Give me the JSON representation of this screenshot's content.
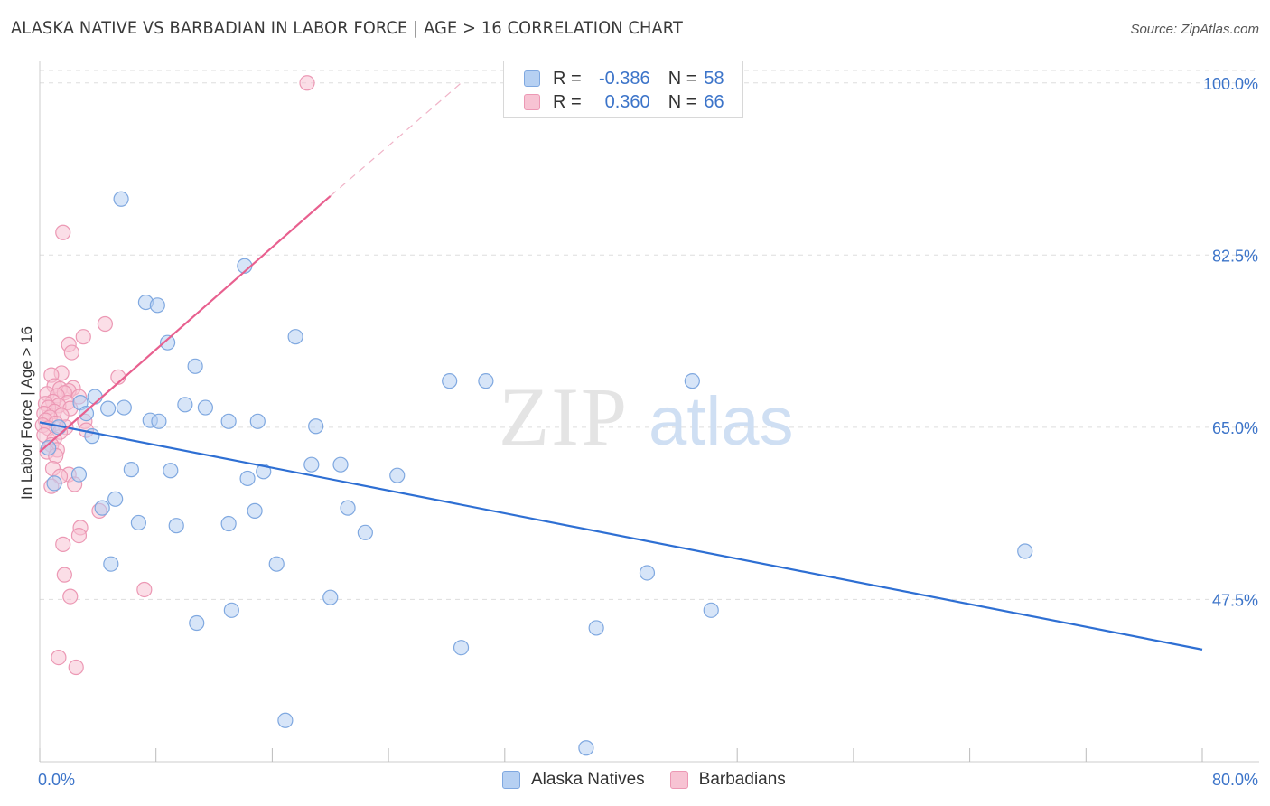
{
  "title": "ALASKA NATIVE VS BARBADIAN IN LABOR FORCE | AGE > 16 CORRELATION CHART",
  "source": "Source: ZipAtlas.com",
  "watermark": {
    "zip": "ZIP",
    "atlas": "atlas"
  },
  "legend": {
    "r_label": "R =",
    "n_label": "N =",
    "series": [
      {
        "name": "Alaska Natives",
        "r": "-0.386",
        "n": "58"
      },
      {
        "name": "Barbadians",
        "r": "0.360",
        "n": "66"
      }
    ]
  },
  "colors": {
    "blue_fill": "#b6d0f2",
    "blue_stroke": "#7fa8e0",
    "blue_line": "#2e6fd3",
    "pink_fill": "#f7c3d3",
    "pink_stroke": "#ec98b4",
    "pink_line": "#e8608f",
    "axis_label": "#3c74c9",
    "grid": "#dddddd"
  },
  "chart_data": {
    "type": "scatter",
    "title": "ALASKA NATIVE VS BARBADIAN IN LABOR FORCE | AGE > 16 CORRELATION CHART",
    "xlabel": "",
    "ylabel": "In Labor Force | Age > 16",
    "xlim": [
      0,
      80
    ],
    "ylim": [
      31,
      102
    ],
    "x_tick_labels": [
      "0.0%",
      "80.0%"
    ],
    "y_ticks": [
      47.5,
      65.0,
      82.5,
      100.0
    ],
    "y_tick_labels": [
      "47.5%",
      "65.0%",
      "82.5%",
      "100.0%"
    ],
    "grid": true,
    "series": [
      {
        "name": "Alaska Natives",
        "color": "#b6d0f2",
        "trend": {
          "x0": 0.0,
          "y0": 65.5,
          "x1": 80.0,
          "y1": 42.4
        },
        "points": [
          [
            5.6,
            88.2
          ],
          [
            14.1,
            81.4
          ],
          [
            7.3,
            77.7
          ],
          [
            8.1,
            77.4
          ],
          [
            17.6,
            74.2
          ],
          [
            8.8,
            73.6
          ],
          [
            10.7,
            71.2
          ],
          [
            44.9,
            69.7
          ],
          [
            30.7,
            69.7
          ],
          [
            28.2,
            69.7
          ],
          [
            3.8,
            68.1
          ],
          [
            2.8,
            67.5
          ],
          [
            10.0,
            67.3
          ],
          [
            11.4,
            67.0
          ],
          [
            5.8,
            67.0
          ],
          [
            4.7,
            66.9
          ],
          [
            3.2,
            66.4
          ],
          [
            7.6,
            65.7
          ],
          [
            8.2,
            65.6
          ],
          [
            13.0,
            65.6
          ],
          [
            15.0,
            65.6
          ],
          [
            19.0,
            65.1
          ],
          [
            1.3,
            65.0
          ],
          [
            3.6,
            64.1
          ],
          [
            0.6,
            62.9
          ],
          [
            18.7,
            61.2
          ],
          [
            20.7,
            61.2
          ],
          [
            6.3,
            60.7
          ],
          [
            9.0,
            60.6
          ],
          [
            15.4,
            60.5
          ],
          [
            2.7,
            60.2
          ],
          [
            24.6,
            60.1
          ],
          [
            14.3,
            59.8
          ],
          [
            1.0,
            59.3
          ],
          [
            5.2,
            57.7
          ],
          [
            4.3,
            56.8
          ],
          [
            14.8,
            56.5
          ],
          [
            21.2,
            56.8
          ],
          [
            6.8,
            55.3
          ],
          [
            13.0,
            55.2
          ],
          [
            9.4,
            55.0
          ],
          [
            22.4,
            54.3
          ],
          [
            67.8,
            52.4
          ],
          [
            4.9,
            51.1
          ],
          [
            16.3,
            51.1
          ],
          [
            41.8,
            50.2
          ],
          [
            20.0,
            47.7
          ],
          [
            46.2,
            46.4
          ],
          [
            13.2,
            46.4
          ],
          [
            10.8,
            45.1
          ],
          [
            38.3,
            44.6
          ],
          [
            29.0,
            42.6
          ],
          [
            16.9,
            35.2
          ],
          [
            37.6,
            32.4
          ]
        ]
      },
      {
        "name": "Barbadians",
        "color": "#f7c3d3",
        "trend": {
          "x0": 0.0,
          "y0": 62.5,
          "x1": 20.0,
          "y1": 88.5,
          "dash_x1": 29.0,
          "dash_y1": 100.0
        },
        "points": [
          [
            18.4,
            100.0
          ],
          [
            1.6,
            84.8
          ],
          [
            4.5,
            75.5
          ],
          [
            3.0,
            74.2
          ],
          [
            2.0,
            73.4
          ],
          [
            2.2,
            72.6
          ],
          [
            5.4,
            70.1
          ],
          [
            1.5,
            70.5
          ],
          [
            0.8,
            70.3
          ],
          [
            1.0,
            69.2
          ],
          [
            2.3,
            69.0
          ],
          [
            1.4,
            68.9
          ],
          [
            2.0,
            68.7
          ],
          [
            1.7,
            68.5
          ],
          [
            0.5,
            68.4
          ],
          [
            1.2,
            68.2
          ],
          [
            2.7,
            68.1
          ],
          [
            0.9,
            67.6
          ],
          [
            1.9,
            67.5
          ],
          [
            0.4,
            67.4
          ],
          [
            1.3,
            67.2
          ],
          [
            0.6,
            67.0
          ],
          [
            2.1,
            66.9
          ],
          [
            1.0,
            66.6
          ],
          [
            0.3,
            66.4
          ],
          [
            1.5,
            66.2
          ],
          [
            0.7,
            66.0
          ],
          [
            3.1,
            65.6
          ],
          [
            0.4,
            65.7
          ],
          [
            1.1,
            65.4
          ],
          [
            0.2,
            65.2
          ],
          [
            1.8,
            65.0
          ],
          [
            0.6,
            64.9
          ],
          [
            3.2,
            64.7
          ],
          [
            1.4,
            64.5
          ],
          [
            0.3,
            64.2
          ],
          [
            1.0,
            63.8
          ],
          [
            0.8,
            63.2
          ],
          [
            1.2,
            62.7
          ],
          [
            0.5,
            62.5
          ],
          [
            1.1,
            62.1
          ],
          [
            0.9,
            60.8
          ],
          [
            2.0,
            60.2
          ],
          [
            1.4,
            60.0
          ],
          [
            0.8,
            59.0
          ],
          [
            2.4,
            59.2
          ],
          [
            4.1,
            56.5
          ],
          [
            2.8,
            54.8
          ],
          [
            2.7,
            54.0
          ],
          [
            1.6,
            53.1
          ],
          [
            1.7,
            50.0
          ],
          [
            7.2,
            48.5
          ],
          [
            2.1,
            47.8
          ],
          [
            1.3,
            41.6
          ],
          [
            2.5,
            40.6
          ]
        ]
      }
    ]
  }
}
